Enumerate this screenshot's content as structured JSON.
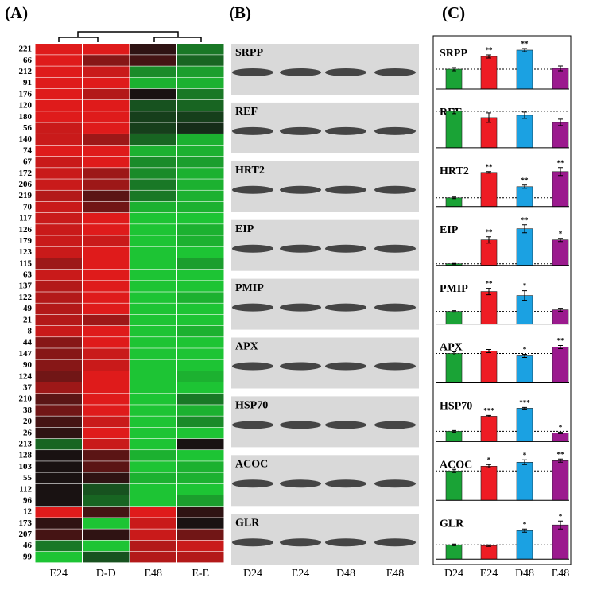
{
  "panel_labels": [
    "(A)",
    "(B)",
    "(C)"
  ],
  "heatmap": {
    "columns": [
      "E24",
      "D-D",
      "E48",
      "E-E"
    ],
    "rows": [
      "221",
      "66",
      "212",
      "91",
      "176",
      "120",
      "180",
      "56",
      "140",
      "74",
      "67",
      "172",
      "206",
      "219",
      "70",
      "117",
      "126",
      "179",
      "123",
      "115",
      "63",
      "137",
      "122",
      "49",
      "21",
      "8",
      "44",
      "147",
      "90",
      "124",
      "37",
      "210",
      "38",
      "20",
      "26",
      "213",
      "128",
      "103",
      "55",
      "112",
      "96",
      "12",
      "173",
      "207",
      "46",
      "99"
    ],
    "values": [
      [
        0.9,
        0.9,
        0.1,
        -0.5
      ],
      [
        0.9,
        0.5,
        0.2,
        -0.4
      ],
      [
        0.9,
        0.8,
        -0.6,
        -0.7
      ],
      [
        0.9,
        0.9,
        -0.8,
        -0.8
      ],
      [
        0.9,
        0.7,
        0.0,
        -0.5
      ],
      [
        0.9,
        0.9,
        -0.3,
        -0.4
      ],
      [
        0.9,
        0.9,
        -0.2,
        -0.2
      ],
      [
        0.8,
        0.9,
        -0.2,
        -0.1
      ],
      [
        0.8,
        0.6,
        -0.4,
        -0.8
      ],
      [
        0.9,
        0.9,
        -0.8,
        -0.8
      ],
      [
        0.8,
        0.9,
        -0.6,
        -0.7
      ],
      [
        0.8,
        0.6,
        -0.6,
        -0.8
      ],
      [
        0.8,
        0.6,
        -0.5,
        -0.8
      ],
      [
        0.7,
        0.3,
        -0.5,
        -0.8
      ],
      [
        0.8,
        0.4,
        -0.8,
        -0.8
      ],
      [
        0.8,
        0.9,
        -0.9,
        -0.9
      ],
      [
        0.8,
        0.9,
        -0.9,
        -0.8
      ],
      [
        0.8,
        0.8,
        -0.9,
        -0.8
      ],
      [
        0.8,
        0.9,
        -0.9,
        -0.9
      ],
      [
        0.6,
        0.9,
        -0.9,
        -0.7
      ],
      [
        0.8,
        0.9,
        -0.9,
        -0.9
      ],
      [
        0.7,
        0.9,
        -0.9,
        -0.9
      ],
      [
        0.7,
        0.9,
        -0.9,
        -0.8
      ],
      [
        0.7,
        0.9,
        -0.9,
        -0.9
      ],
      [
        0.7,
        0.6,
        -0.9,
        -0.9
      ],
      [
        0.8,
        0.9,
        -0.9,
        -0.8
      ],
      [
        0.5,
        0.9,
        -0.9,
        -0.9
      ],
      [
        0.5,
        0.8,
        -0.9,
        -0.9
      ],
      [
        0.5,
        0.8,
        -0.9,
        -0.9
      ],
      [
        0.4,
        0.9,
        -0.9,
        -0.8
      ],
      [
        0.6,
        0.9,
        -0.9,
        -0.9
      ],
      [
        0.3,
        0.9,
        -0.9,
        -0.5
      ],
      [
        0.4,
        0.9,
        -0.9,
        -0.8
      ],
      [
        0.2,
        0.8,
        -0.9,
        -0.6
      ],
      [
        0.1,
        0.9,
        -0.9,
        -0.9
      ],
      [
        -0.4,
        0.8,
        -0.9,
        0.0
      ],
      [
        0.0,
        0.3,
        -0.8,
        -0.9
      ],
      [
        0.0,
        0.3,
        -0.9,
        -0.8
      ],
      [
        0.0,
        0.1,
        -0.8,
        -0.8
      ],
      [
        0.0,
        -0.3,
        -0.9,
        -0.9
      ],
      [
        0.0,
        -0.4,
        -0.9,
        -0.7
      ],
      [
        0.9,
        0.2,
        0.9,
        0.1
      ],
      [
        0.1,
        -0.9,
        0.8,
        0.0
      ],
      [
        0.2,
        0.1,
        0.8,
        0.4
      ],
      [
        -0.5,
        -0.9,
        0.7,
        0.8
      ],
      [
        -0.9,
        -0.3,
        0.7,
        0.7
      ]
    ]
  },
  "chart_data": {
    "type": "bar",
    "categories": [
      "D24",
      "E24",
      "D48",
      "E48"
    ],
    "colors": [
      "#1aa336",
      "#ee1c24",
      "#1ba1e2",
      "#9b1a8e"
    ],
    "ylim": [
      0,
      55
    ],
    "panels": [
      {
        "title": "SRPP",
        "values": [
          25,
          41,
          49,
          26
        ],
        "errors": [
          2,
          2,
          2,
          3
        ],
        "stars": [
          null,
          "**",
          "**",
          null
        ]
      },
      {
        "title": "REF",
        "values": [
          46,
          38,
          41,
          32
        ],
        "errors": [
          3,
          6,
          4,
          4
        ],
        "stars": [
          null,
          null,
          null,
          null
        ]
      },
      {
        "title": "HRT2",
        "values": [
          11,
          43,
          25,
          44
        ],
        "errors": [
          1,
          1,
          2,
          5
        ],
        "stars": [
          null,
          "**",
          "**",
          "**"
        ]
      },
      {
        "title": "EIP",
        "values": [
          2,
          32,
          46,
          32
        ],
        "errors": [
          0.5,
          4,
          5,
          2
        ],
        "stars": [
          null,
          "**",
          "**",
          "*"
        ]
      },
      {
        "title": "PMIP",
        "values": [
          16,
          41,
          36,
          18
        ],
        "errors": [
          1,
          4,
          6,
          2
        ],
        "stars": [
          null,
          "**",
          "*",
          null
        ]
      },
      {
        "title": "APX",
        "values": [
          37,
          40,
          34,
          45
        ],
        "errors": [
          2,
          2,
          2,
          2
        ],
        "stars": [
          null,
          null,
          "*",
          "**"
        ]
      },
      {
        "title": "HSP70",
        "values": [
          13,
          32,
          42,
          11
        ],
        "errors": [
          1,
          1,
          1,
          1
        ],
        "stars": [
          null,
          "***",
          "***",
          "*"
        ]
      },
      {
        "title": "ACOC",
        "values": [
          37,
          43,
          48,
          50
        ],
        "errors": [
          2,
          2,
          3,
          2
        ],
        "stars": [
          null,
          "*",
          "*",
          "**"
        ]
      },
      {
        "title": "GLR",
        "values": [
          18,
          17,
          36,
          43
        ],
        "errors": [
          1,
          1,
          2,
          5
        ],
        "stars": [
          null,
          null,
          "*",
          "*"
        ]
      }
    ]
  }
}
